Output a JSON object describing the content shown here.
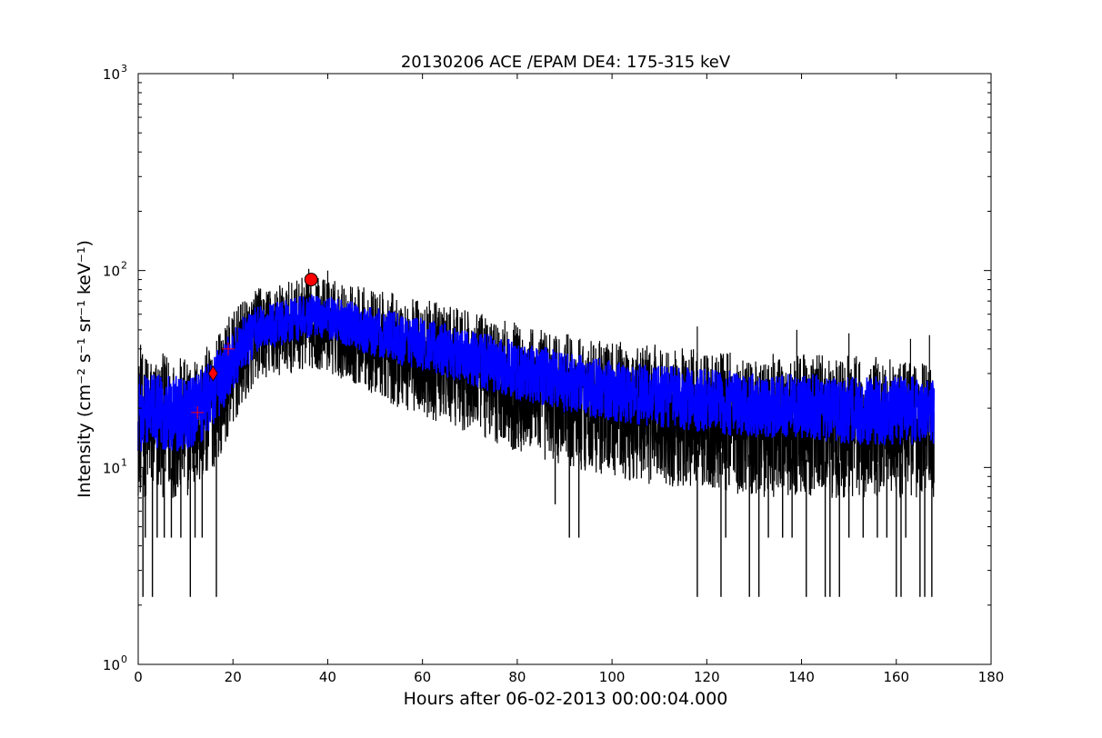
{
  "chart_data": {
    "type": "line",
    "title": "20130206 ACE /EPAM DE4: 175-315 keV",
    "xlabel": "Hours after 06-02-2013 00:00:04.000",
    "ylabel": "Intensity (cm⁻² s⁻¹ sr⁻¹ keV⁻¹)",
    "xlim": [
      0,
      180
    ],
    "ylim": [
      1,
      1000
    ],
    "yscale": "log",
    "grid": false,
    "x_ticks": [
      "0",
      "20",
      "40",
      "60",
      "80",
      "100",
      "120",
      "140",
      "160",
      "180"
    ],
    "y_ticks": [
      {
        "base": "10",
        "exp": "0"
      },
      {
        "base": "10",
        "exp": "1"
      },
      {
        "base": "10",
        "exp": "2"
      },
      {
        "base": "10",
        "exp": "3"
      }
    ],
    "envelope_hours": [
      0,
      5,
      10,
      13,
      16,
      19,
      22,
      25,
      28,
      32,
      36,
      40,
      45,
      50,
      55,
      60,
      70,
      80,
      90,
      100,
      110,
      120,
      130,
      140,
      150,
      160,
      168
    ],
    "envelope_center": [
      18,
      18,
      18,
      19,
      24,
      33,
      42,
      52,
      53,
      56,
      60,
      58,
      54,
      50,
      47,
      44,
      37,
      32,
      28,
      25,
      23,
      22,
      21,
      20,
      19,
      19,
      19
    ],
    "series": [
      {
        "color": "#000000",
        "x": [
          0,
          5,
          10,
          13,
          16,
          19,
          22,
          25,
          28,
          32,
          36,
          40,
          45,
          50,
          55,
          60,
          70,
          80,
          90,
          100,
          110,
          120,
          130,
          140,
          150,
          160,
          168
        ],
        "high": [
          38,
          38,
          36,
          38,
          45,
          58,
          70,
          82,
          83,
          88,
          95,
          92,
          86,
          80,
          76,
          72,
          62,
          55,
          48,
          44,
          42,
          40,
          38,
          38,
          37,
          36,
          36
        ],
        "low": [
          7,
          7,
          7,
          8,
          10,
          14,
          20,
          28,
          28,
          30,
          32,
          30,
          27,
          23,
          20,
          18,
          15,
          12,
          10,
          9,
          8,
          8,
          7,
          7,
          7,
          7,
          7
        ]
      },
      {
        "color": "#0000ff",
        "x": [
          0,
          5,
          10,
          13,
          16,
          19,
          22,
          25,
          28,
          32,
          36,
          40,
          45,
          50,
          55,
          60,
          70,
          80,
          90,
          100,
          110,
          120,
          130,
          140,
          150,
          160,
          168
        ],
        "high": [
          30,
          30,
          29,
          31,
          37,
          48,
          58,
          66,
          68,
          72,
          76,
          74,
          70,
          65,
          61,
          58,
          50,
          44,
          39,
          35,
          33,
          32,
          30,
          30,
          29,
          29,
          29
        ],
        "low": [
          12,
          12,
          12,
          13,
          16,
          22,
          30,
          38,
          40,
          42,
          45,
          44,
          40,
          36,
          33,
          31,
          26,
          22,
          19,
          17,
          16,
          15,
          14,
          14,
          13,
          13,
          13
        ]
      }
    ],
    "spikes_low": [
      {
        "x": 1,
        "y": 2.2
      },
      {
        "x": 3,
        "y": 2.2
      },
      {
        "x": 11,
        "y": 2.2
      },
      {
        "x": 16.5,
        "y": 2.2
      },
      {
        "x": 1.5,
        "y": 4.4
      },
      {
        "x": 4,
        "y": 4.4
      },
      {
        "x": 5.5,
        "y": 4.4
      },
      {
        "x": 7,
        "y": 4.4
      },
      {
        "x": 9,
        "y": 4.4
      },
      {
        "x": 12,
        "y": 4.4
      },
      {
        "x": 13.5,
        "y": 4.4
      },
      {
        "x": 88,
        "y": 6.5
      },
      {
        "x": 91,
        "y": 4.4
      },
      {
        "x": 93,
        "y": 4.4
      },
      {
        "x": 118,
        "y": 2.2
      },
      {
        "x": 123,
        "y": 2.2
      },
      {
        "x": 124,
        "y": 4.4
      },
      {
        "x": 129,
        "y": 2.2
      },
      {
        "x": 131,
        "y": 2.2
      },
      {
        "x": 133,
        "y": 4.4
      },
      {
        "x": 136,
        "y": 4.4
      },
      {
        "x": 138,
        "y": 4.4
      },
      {
        "x": 141,
        "y": 2.2
      },
      {
        "x": 145,
        "y": 2.2
      },
      {
        "x": 146,
        "y": 2.2
      },
      {
        "x": 148,
        "y": 2.2
      },
      {
        "x": 150,
        "y": 4.4
      },
      {
        "x": 153,
        "y": 4.4
      },
      {
        "x": 156,
        "y": 4.4
      },
      {
        "x": 158,
        "y": 4.4
      },
      {
        "x": 160,
        "y": 2.2
      },
      {
        "x": 161,
        "y": 2.2
      },
      {
        "x": 162,
        "y": 4.4
      },
      {
        "x": 165,
        "y": 2.2
      },
      {
        "x": 166,
        "y": 2.2
      },
      {
        "x": 167.5,
        "y": 2.2
      }
    ],
    "spikes_high": [
      {
        "x": 0.5,
        "y": 42
      },
      {
        "x": 20,
        "y": 48
      },
      {
        "x": 36,
        "y": 102
      },
      {
        "x": 40,
        "y": 100
      },
      {
        "x": 118,
        "y": 52
      },
      {
        "x": 139,
        "y": 50
      },
      {
        "x": 150,
        "y": 48
      },
      {
        "x": 163,
        "y": 45
      },
      {
        "x": 167,
        "y": 47
      }
    ],
    "markers": [
      {
        "shape": "plus",
        "x": 12.5,
        "y": 19,
        "color": "#ff0000"
      },
      {
        "shape": "diamond",
        "x": 15.8,
        "y": 30,
        "color": "#ff0000"
      },
      {
        "shape": "plus",
        "x": 19,
        "y": 40,
        "color": "#ff0000"
      },
      {
        "shape": "circle",
        "x": 36.5,
        "y": 90,
        "color": "#ff0000"
      }
    ]
  }
}
